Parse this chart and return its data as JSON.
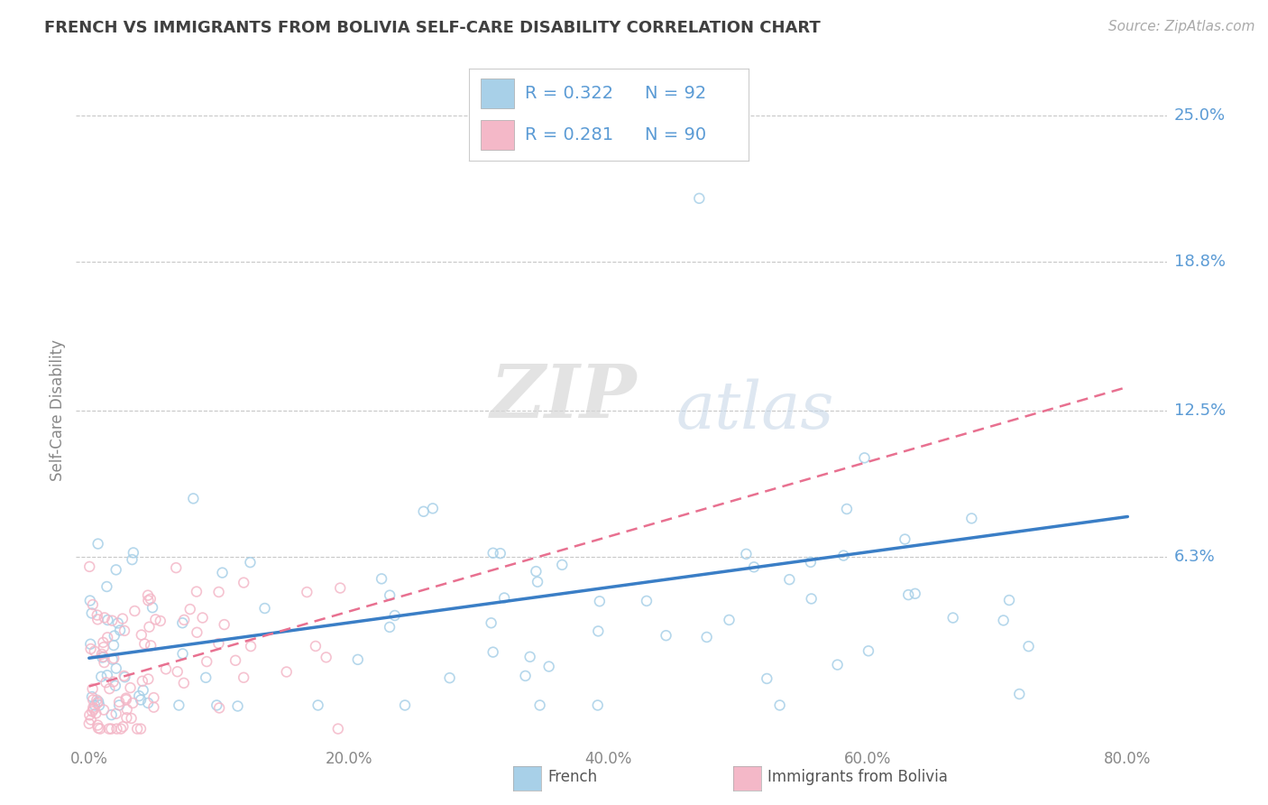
{
  "title": "FRENCH VS IMMIGRANTS FROM BOLIVIA SELF-CARE DISABILITY CORRELATION CHART",
  "source": "Source: ZipAtlas.com",
  "ylabel": "Self-Care Disability",
  "xlabel_ticks": [
    "0.0%",
    "20.0%",
    "40.0%",
    "60.0%",
    "80.0%"
  ],
  "xlabel_vals": [
    0.0,
    20.0,
    40.0,
    60.0,
    80.0
  ],
  "ytick_labels": [
    "6.3%",
    "12.5%",
    "18.8%",
    "25.0%"
  ],
  "ytick_vals": [
    6.3,
    12.5,
    18.8,
    25.0
  ],
  "ylim": [
    -1.5,
    26.5
  ],
  "xlim": [
    -1,
    83
  ],
  "french_R": 0.322,
  "french_N": 92,
  "bolivia_R": 0.281,
  "bolivia_N": 90,
  "french_color": "#a8d0e8",
  "bolivia_color": "#f4b8c8",
  "trend_french_color": "#3a7ec6",
  "trend_bolivia_color": "#e87090",
  "legend_label_french": "French",
  "legend_label_bolivia": "Immigrants from Bolivia",
  "watermark_zip": "ZIP",
  "watermark_atlas": "atlas",
  "background_color": "#ffffff",
  "grid_color": "#c8c8c8",
  "title_color": "#404040",
  "axis_label_color": "#5b9bd5",
  "source_color": "#aaaaaa"
}
